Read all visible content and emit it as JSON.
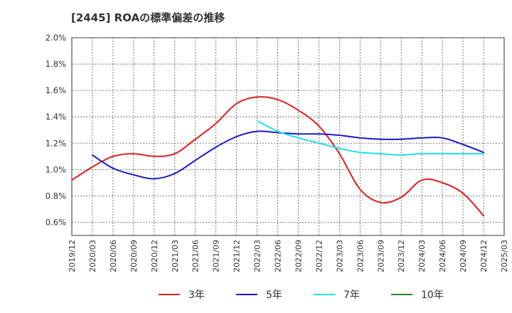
{
  "chart_data": {
    "type": "line",
    "title": "[2445]  ROAの標準偏差の推移",
    "xlabel": "",
    "ylabel": "",
    "ylim": [
      0.5,
      2.0
    ],
    "y_tick_values": [
      0.6,
      0.8,
      1.0,
      1.2,
      1.4,
      1.6,
      1.8,
      2.0
    ],
    "y_tick_labels": [
      "0.6%",
      "0.8%",
      "1.0%",
      "1.2%",
      "1.4%",
      "1.6%",
      "1.8%",
      "2.0%"
    ],
    "x_tick_labels": [
      "2019/12",
      "2020/03",
      "2020/06",
      "2020/09",
      "2020/12",
      "2021/03",
      "2021/06",
      "2021/09",
      "2021/12",
      "2022/03",
      "2022/06",
      "2022/09",
      "2022/12",
      "2023/03",
      "2023/06",
      "2023/09",
      "2023/12",
      "2024/03",
      "2024/06",
      "2024/09",
      "2024/12",
      "2025/03"
    ],
    "grid": true,
    "legend_position": "bottom",
    "series": [
      {
        "name": "3年",
        "color": "#dd1f1f",
        "x": [
          "2019/12",
          "2020/03",
          "2020/06",
          "2020/09",
          "2020/12",
          "2021/03",
          "2021/06",
          "2021/09",
          "2021/12",
          "2022/03",
          "2022/06",
          "2022/09",
          "2022/12",
          "2023/03",
          "2023/06",
          "2023/09",
          "2023/12",
          "2024/03",
          "2024/06",
          "2024/09",
          "2024/12"
        ],
        "values": [
          0.92,
          1.02,
          1.1,
          1.12,
          1.1,
          1.12,
          1.23,
          1.35,
          1.5,
          1.55,
          1.53,
          1.45,
          1.33,
          1.12,
          0.85,
          0.75,
          0.79,
          0.92,
          0.9,
          0.82,
          0.65
        ]
      },
      {
        "name": "5年",
        "color": "#1a1acc",
        "x": [
          "2020/03",
          "2020/06",
          "2020/09",
          "2020/12",
          "2021/03",
          "2021/06",
          "2021/09",
          "2021/12",
          "2022/03",
          "2022/06",
          "2022/09",
          "2022/12",
          "2023/03",
          "2023/06",
          "2023/09",
          "2023/12",
          "2024/03",
          "2024/06",
          "2024/09",
          "2024/12"
        ],
        "values": [
          1.11,
          1.01,
          0.96,
          0.93,
          0.97,
          1.07,
          1.17,
          1.25,
          1.29,
          1.28,
          1.27,
          1.27,
          1.26,
          1.24,
          1.23,
          1.23,
          1.24,
          1.24,
          1.19,
          1.13
        ]
      },
      {
        "name": "7年",
        "color": "#22e0ee",
        "x": [
          "2022/03",
          "2022/06",
          "2022/09",
          "2022/12",
          "2023/03",
          "2023/06",
          "2023/09",
          "2023/12",
          "2024/03",
          "2024/06",
          "2024/09",
          "2024/12"
        ],
        "values": [
          1.37,
          1.29,
          1.24,
          1.2,
          1.16,
          1.13,
          1.12,
          1.11,
          1.12,
          1.12,
          1.12,
          1.12
        ]
      },
      {
        "name": "10年",
        "color": "#228b22",
        "x": [],
        "values": []
      }
    ]
  }
}
